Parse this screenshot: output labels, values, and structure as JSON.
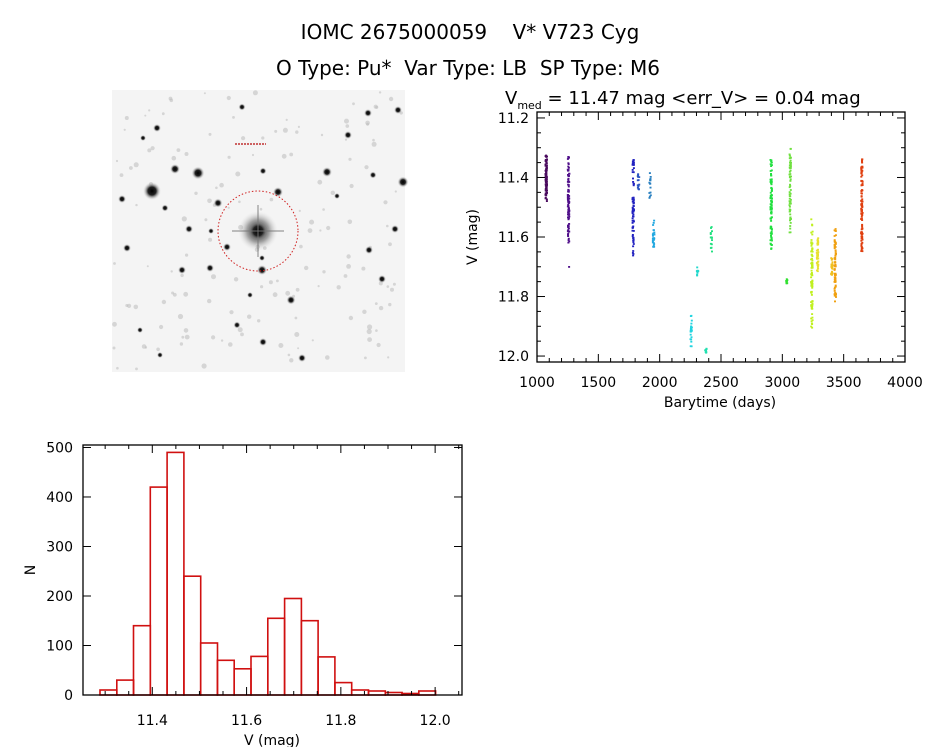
{
  "header": {
    "title": "IOMC 2675000059    V* V723 Cyg",
    "subtitle": "O Type: Pu*  Var Type: LB  SP Type: M6"
  },
  "image_panel": {
    "label": "finding chart",
    "target": "V* V723 Cyg"
  },
  "chart_data": [
    {
      "type": "scatter",
      "title_prefix": "V",
      "title_sub": "med",
      "title_rest": " = 11.47 mag <err_V> = 0.04 mag",
      "xlabel": "Barytime (days)",
      "ylabel": "V (mag)",
      "xlim": [
        1000,
        4000
      ],
      "ylim": [
        12.02,
        11.18
      ],
      "y_inverted": true,
      "xticks": [
        "1000",
        "1500",
        "2000",
        "2500",
        "3000",
        "3500",
        "4000"
      ],
      "xtick_values": [
        1000,
        1500,
        2000,
        2500,
        3000,
        3500,
        4000
      ],
      "yticks": [
        "11.2",
        "11.4",
        "11.6",
        "11.8",
        "12.0"
      ],
      "ytick_values": [
        11.2,
        11.4,
        11.6,
        11.8,
        12.0
      ],
      "series": [
        {
          "x": 1071,
          "vmin": 11.32,
          "vmax": 11.48,
          "n": 90,
          "color": "#4a0a5e"
        },
        {
          "x": 1253,
          "vmin": 11.33,
          "vmax": 11.62,
          "n": 90,
          "color": "#50108a",
          "outliers": [
            11.7
          ]
        },
        {
          "x": 1780,
          "vmin": 11.34,
          "vmax": 11.67,
          "n": 80,
          "color": "#2222c0"
        },
        {
          "x": 1823,
          "vmin": 11.38,
          "vmax": 11.45,
          "n": 15,
          "color": "#2a55c0"
        },
        {
          "x": 1918,
          "vmin": 11.38,
          "vmax": 11.47,
          "n": 15,
          "color": "#2a80c0"
        },
        {
          "x": 1946,
          "vmin": 11.54,
          "vmax": 11.64,
          "n": 25,
          "color": "#22a8e0"
        },
        {
          "x": 2253,
          "vmin": 11.86,
          "vmax": 11.97,
          "n": 25,
          "color": "#22d4e0"
        },
        {
          "x": 2304,
          "vmin": 11.7,
          "vmax": 11.73,
          "n": 10,
          "color": "#22d8cc"
        },
        {
          "x": 2372,
          "vmin": 11.97,
          "vmax": 11.99,
          "n": 8,
          "color": "#22e0b0"
        },
        {
          "x": 2418,
          "vmin": 11.54,
          "vmax": 11.65,
          "n": 15,
          "color": "#22e080"
        },
        {
          "x": 2905,
          "vmin": 11.34,
          "vmax": 11.64,
          "n": 90,
          "color": "#22e040"
        },
        {
          "x": 3033,
          "vmin": 11.74,
          "vmax": 11.76,
          "n": 10,
          "color": "#30e030"
        },
        {
          "x": 3060,
          "vmin": 11.29,
          "vmax": 11.6,
          "n": 60,
          "color": "#70e040"
        },
        {
          "x": 3236,
          "vmin": 11.54,
          "vmax": 11.91,
          "n": 90,
          "color": "#c0f020"
        },
        {
          "x": 3283,
          "vmin": 11.6,
          "vmax": 11.72,
          "n": 40,
          "color": "#e8e030"
        },
        {
          "x": 3399,
          "vmin": 11.67,
          "vmax": 11.74,
          "n": 25,
          "color": "#f0c020"
        },
        {
          "x": 3427,
          "vmin": 11.57,
          "vmax": 11.82,
          "n": 70,
          "color": "#f0a010"
        },
        {
          "x": 3644,
          "vmin": 11.33,
          "vmax": 11.66,
          "n": 100,
          "color": "#e04010"
        }
      ]
    },
    {
      "type": "bar",
      "subtype": "histogram",
      "xlabel": "V (mag)",
      "ylabel": "N",
      "xlim": [
        11.253,
        12.057
      ],
      "ylim": [
        0,
        505
      ],
      "bin_start": 11.289,
      "bin_width": 0.0356,
      "values": [
        10,
        30,
        140,
        420,
        490,
        240,
        105,
        70,
        53,
        78,
        155,
        195,
        150,
        77,
        25,
        10,
        8,
        5,
        3,
        8
      ],
      "color": "#d01010",
      "xticks": [
        "11.4",
        "11.6",
        "11.8",
        "12.0"
      ],
      "xtick_values": [
        11.4,
        11.6,
        11.8,
        12.0
      ],
      "yticks": [
        "0",
        "100",
        "200",
        "300",
        "400",
        "500"
      ],
      "ytick_values": [
        0,
        100,
        200,
        300,
        400,
        500
      ]
    }
  ]
}
